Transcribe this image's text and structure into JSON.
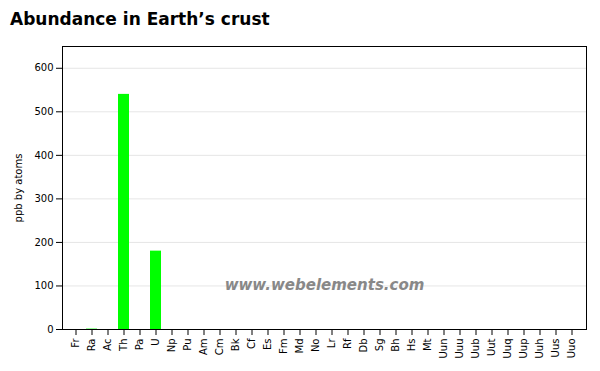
{
  "chart_data": {
    "type": "bar",
    "title": "Abundance in Earth’s crust",
    "ylabel": "ppb by atoms",
    "categories": [
      "Fr",
      "Ra",
      "Ac",
      "Th",
      "Pa",
      "U",
      "Np",
      "Pu",
      "Am",
      "Cm",
      "Bk",
      "Cf",
      "Es",
      "Fm",
      "Md",
      "No",
      "Lr",
      "Rf",
      "Db",
      "Sg",
      "Bh",
      "Hs",
      "Mt",
      "Uun",
      "Uuu",
      "Uub",
      "Uut",
      "Uuq",
      "Uup",
      "Uuh",
      "Uus",
      "Uuo"
    ],
    "values": [
      0,
      0.9,
      0,
      540,
      0,
      180,
      0,
      0,
      0,
      0,
      0,
      0,
      0,
      0,
      0,
      0,
      0,
      0,
      0,
      0,
      0,
      0,
      0,
      0,
      0,
      0,
      0,
      0,
      0,
      0,
      0,
      0
    ],
    "color": "#00ff00",
    "ylim": [
      0,
      650
    ],
    "yticks": [
      0,
      100,
      200,
      300,
      400,
      500,
      600
    ],
    "grid": true,
    "annotations": [
      "www.webelements.com"
    ]
  }
}
